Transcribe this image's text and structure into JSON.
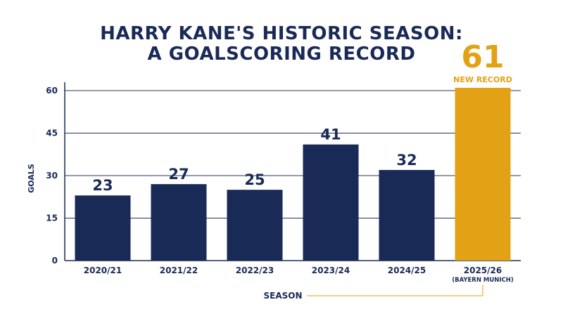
{
  "title_line1": "HARRY KANE'S HISTORIC SEASON:",
  "title_line2": "A GOALSCORING RECORD",
  "colors": {
    "navy": "#1a2a57",
    "gold": "#e3a115"
  },
  "chart_data": {
    "type": "bar",
    "categories": [
      "2020/21",
      "2021/22",
      "2022/23",
      "2023/24",
      "2024/25",
      "2025/26"
    ],
    "category_sublabels": [
      "",
      "",
      "",
      "",
      "",
      "(BAYERN MUNICH)"
    ],
    "values": [
      23,
      27,
      25,
      41,
      32,
      61
    ],
    "highlight_index": 5,
    "highlight_value_label": "61",
    "highlight_annotation": "NEW RECORD",
    "xlabel": "SEASON",
    "ylabel": "GOALS",
    "ylim": [
      0,
      61
    ],
    "yticks": [
      0,
      15,
      30,
      45,
      60
    ],
    "grid": true
  }
}
